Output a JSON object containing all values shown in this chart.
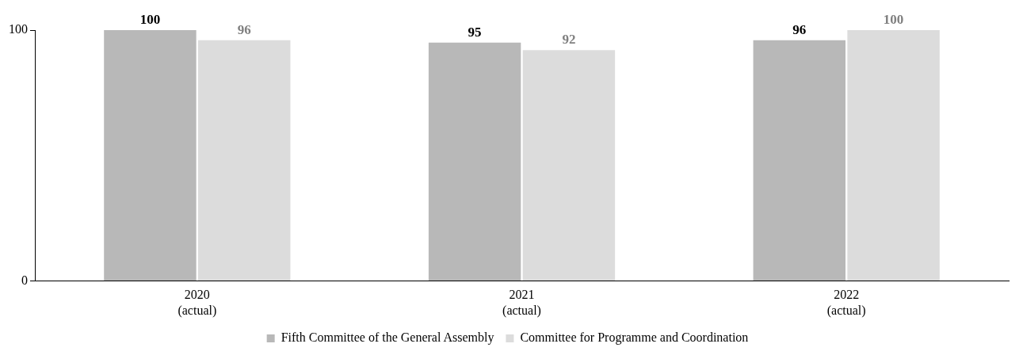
{
  "chart_data": {
    "type": "bar",
    "categories": [
      "2020\n(actual)",
      "2021\n(actual)",
      "2022\n(actual)"
    ],
    "series": [
      {
        "name": "Fifth Committee of the General Assembly",
        "color": "#b8b8b8",
        "values": [
          100,
          95,
          96
        ]
      },
      {
        "name": "Committee for Programme and Coordination",
        "color": "#dcdcdc",
        "values": [
          96,
          92,
          100
        ]
      }
    ],
    "ylim": [
      0,
      100
    ],
    "yticks": [
      0,
      100
    ],
    "grid": false,
    "legend": "bottom",
    "data_labels": true
  }
}
